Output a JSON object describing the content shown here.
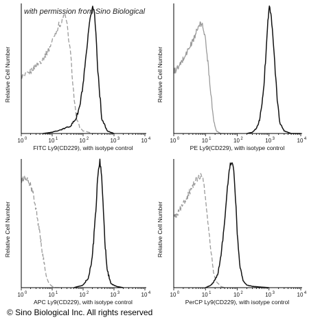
{
  "watermark": "with permission from Sino Biological",
  "footer": "© Sino Biological Inc. All rights reserved",
  "chart_data": [
    {
      "type": "line",
      "xscale": "log",
      "xlim": [
        1,
        10000
      ],
      "ylabel": "Relative Cell Number",
      "xlabel": "FITC Ly9(CD229),  with isotype control",
      "xticks": [
        "10",
        "10",
        "10",
        "10",
        "10"
      ],
      "xtick_exponents": [
        "0",
        "1",
        "2",
        "3",
        "4"
      ],
      "series": [
        {
          "name": "isotype control",
          "style": "dashed",
          "color": "#9a9a9a",
          "x": [
            1,
            1.5,
            2,
            3,
            5,
            8,
            12,
            16,
            20,
            25,
            30,
            40,
            50,
            60,
            80,
            100,
            150,
            200,
            300
          ],
          "y": [
            0.44,
            0.45,
            0.48,
            0.53,
            0.58,
            0.66,
            0.77,
            0.84,
            0.86,
            0.93,
            0.85,
            0.6,
            0.3,
            0.12,
            0.04,
            0.02,
            0.01,
            0.0,
            0.0
          ]
        },
        {
          "name": "Ly9(CD229)",
          "style": "solid",
          "color": "#111111",
          "x": [
            5,
            10,
            20,
            40,
            60,
            80,
            100,
            120,
            150,
            180,
            200,
            230,
            260,
            300,
            400,
            600,
            1000
          ],
          "y": [
            0.0,
            0.01,
            0.03,
            0.06,
            0.12,
            0.22,
            0.38,
            0.55,
            0.78,
            0.93,
            0.99,
            0.95,
            0.78,
            0.5,
            0.12,
            0.02,
            0.0
          ]
        }
      ]
    },
    {
      "type": "line",
      "xscale": "log",
      "xlim": [
        1,
        10000
      ],
      "ylabel": "Relative Cell Number",
      "xlabel": "PE Ly9(CD229),  with isotype control",
      "xticks": [
        "10",
        "10",
        "10",
        "10",
        "10"
      ],
      "xtick_exponents": [
        "0",
        "1",
        "2",
        "3",
        "4"
      ],
      "series": [
        {
          "name": "isotype control",
          "style": "solid",
          "color": "#9a9a9a",
          "x": [
            1,
            1.5,
            2,
            3,
            4,
            5,
            6,
            7,
            8,
            9,
            10,
            12,
            15,
            18,
            22,
            30,
            40
          ],
          "y": [
            0.48,
            0.52,
            0.58,
            0.66,
            0.72,
            0.78,
            0.83,
            0.85,
            0.84,
            0.8,
            0.72,
            0.55,
            0.3,
            0.1,
            0.02,
            0.0,
            0.0
          ]
        },
        {
          "name": "Ly9(CD229)",
          "style": "solid",
          "color": "#111111",
          "x": [
            200,
            300,
            400,
            500,
            600,
            700,
            800,
            900,
            1000,
            1100,
            1300,
            1500,
            1800,
            2200,
            3000,
            5000,
            10000
          ],
          "y": [
            0.0,
            0.01,
            0.04,
            0.1,
            0.22,
            0.4,
            0.62,
            0.85,
            0.98,
            0.96,
            0.8,
            0.55,
            0.28,
            0.08,
            0.02,
            0.0,
            0.0
          ]
        }
      ]
    },
    {
      "type": "line",
      "xscale": "log",
      "xlim": [
        1,
        10000
      ],
      "ylabel": "Relative Cell Number",
      "xlabel": "APC Ly9(CD229), with isotype control",
      "xticks": [
        "10",
        "10",
        "10",
        "10",
        "10"
      ],
      "xtick_exponents": [
        "0",
        "1",
        "2",
        "3",
        "4"
      ],
      "series": [
        {
          "name": "isotype control",
          "style": "dashed",
          "color": "#9a9a9a",
          "x": [
            1,
            1.2,
            1.5,
            2,
            2.5,
            3,
            4,
            5,
            6,
            7,
            8,
            10,
            13,
            20
          ],
          "y": [
            0.83,
            0.86,
            0.85,
            0.8,
            0.72,
            0.62,
            0.42,
            0.25,
            0.13,
            0.06,
            0.03,
            0.01,
            0.0,
            0.0
          ]
        },
        {
          "name": "Ly9(CD229)",
          "style": "solid",
          "color": "#111111",
          "x": [
            50,
            100,
            150,
            200,
            250,
            300,
            350,
            400,
            450,
            500,
            600,
            800,
            1200,
            2000
          ],
          "y": [
            0.0,
            0.02,
            0.08,
            0.25,
            0.55,
            0.88,
            0.99,
            0.88,
            0.62,
            0.38,
            0.14,
            0.03,
            0.01,
            0.0
          ]
        }
      ]
    },
    {
      "type": "line",
      "xscale": "log",
      "xlim": [
        1,
        10000
      ],
      "ylabel": "Relative Cell Number",
      "xlabel": "PerCP Ly9(CD229), with isotype control",
      "xticks": [
        "10",
        "10",
        "10",
        "10",
        "10"
      ],
      "xtick_exponents": [
        "0",
        "1",
        "2",
        "3",
        "4"
      ],
      "series": [
        {
          "name": "isotype control",
          "style": "dashed",
          "color": "#9a9a9a",
          "x": [
            1,
            1.5,
            2,
            3,
            4,
            5,
            6,
            7,
            8,
            9,
            10,
            12,
            15,
            18,
            22,
            30,
            40
          ],
          "y": [
            0.55,
            0.6,
            0.66,
            0.74,
            0.8,
            0.84,
            0.87,
            0.88,
            0.87,
            0.82,
            0.7,
            0.5,
            0.28,
            0.12,
            0.05,
            0.01,
            0.0
          ]
        },
        {
          "name": "Ly9(CD229)",
          "style": "solid",
          "color": "#111111",
          "x": [
            10,
            15,
            20,
            25,
            30,
            40,
            50,
            60,
            70,
            80,
            90,
            100,
            120,
            150,
            200,
            300,
            1000
          ],
          "y": [
            0.0,
            0.02,
            0.06,
            0.12,
            0.22,
            0.5,
            0.82,
            0.97,
            0.99,
            0.88,
            0.66,
            0.42,
            0.18,
            0.06,
            0.02,
            0.01,
            0.0
          ]
        }
      ]
    }
  ]
}
